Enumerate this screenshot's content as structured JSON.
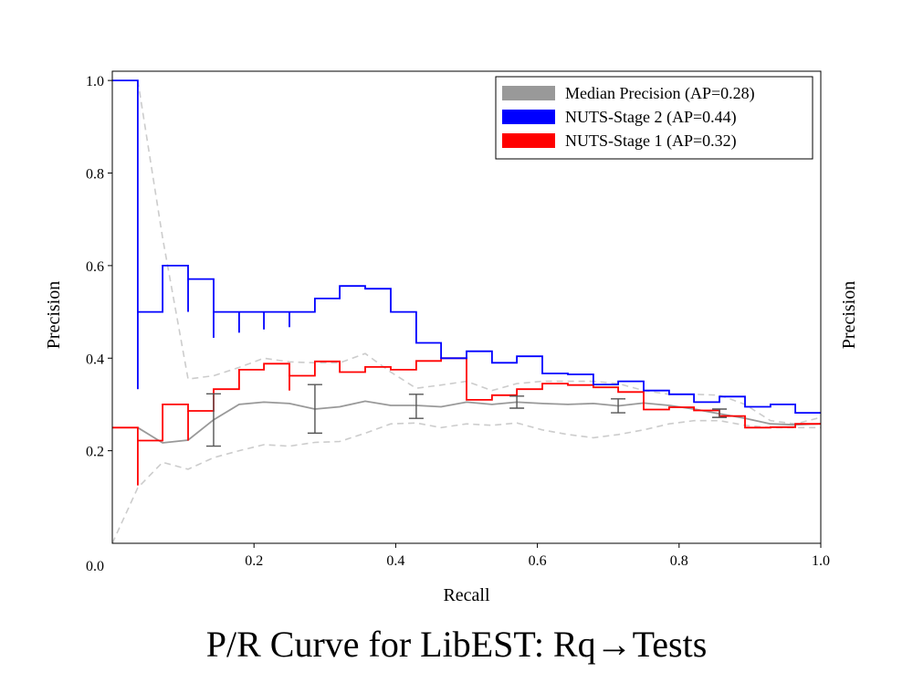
{
  "caption": "P/R Curve for LibEST: Rq→Tests",
  "chart_data": {
    "type": "line",
    "xlabel": "Recall",
    "ylabel": "Precision",
    "ylabel_right": "Precision",
    "xlim": [
      0.0,
      1.0
    ],
    "ylim": [
      0.0,
      1.02
    ],
    "xticks": [
      0.2,
      0.4,
      0.6,
      0.8,
      1.0
    ],
    "xtick_labels": [
      "0.2",
      "0.4",
      "0.6",
      "0.8",
      "1.0"
    ],
    "origin_label": "0.0",
    "yticks": [
      0.2,
      0.4,
      0.6,
      0.8,
      1.0
    ],
    "ytick_labels": [
      "0.2",
      "0.4",
      "0.6",
      "0.8",
      "1.0"
    ],
    "grid": false,
    "legend_position": "top-right",
    "colors": {
      "median": "#999999",
      "stage2": "#0000ff",
      "stage1": "#ff0000",
      "bounds": "#cccccc",
      "errorbar": "#555555"
    },
    "legend": [
      {
        "label": "Median Precision (AP=0.28)",
        "color": "#999999"
      },
      {
        "label": "NUTS-Stage 2 (AP=0.44)",
        "color": "#0000ff"
      },
      {
        "label": "NUTS-Stage 1 (AP=0.32)",
        "color": "#ff0000"
      }
    ],
    "series": [
      {
        "name": "NUTS-Stage 2 (AP=0.44)",
        "style": "step",
        "color": "#0000ff",
        "x": [
          0.0,
          0.036,
          0.036,
          0.071,
          0.071,
          0.107,
          0.107,
          0.143,
          0.143,
          0.179,
          0.179,
          0.214,
          0.214,
          0.25,
          0.25,
          0.286,
          0.286,
          0.321,
          0.321,
          0.357,
          0.357,
          0.393,
          0.393,
          0.429,
          0.429,
          0.464,
          0.464,
          0.5,
          0.5,
          0.536,
          0.536,
          0.571,
          0.571,
          0.607,
          0.607,
          0.643,
          0.643,
          0.679,
          0.679,
          0.714,
          0.714,
          0.75,
          0.75,
          0.786,
          0.786,
          0.821,
          0.821,
          0.857,
          0.857,
          0.893,
          0.893,
          0.929,
          0.929,
          0.964,
          0.964,
          1.0
        ],
        "y": [
          1.0,
          1.0,
          0.5,
          0.5,
          0.6,
          0.6,
          0.571,
          0.571,
          0.5,
          0.5,
          0.5,
          0.5,
          0.5,
          0.5,
          0.5,
          0.5,
          0.529,
          0.529,
          0.556,
          0.556,
          0.55,
          0.55,
          0.5,
          0.5,
          0.433,
          0.433,
          0.4,
          0.4,
          0.415,
          0.415,
          0.39,
          0.39,
          0.404,
          0.404,
          0.367,
          0.367,
          0.365,
          0.365,
          0.343,
          0.343,
          0.35,
          0.35,
          0.33,
          0.33,
          0.322,
          0.322,
          0.305,
          0.305,
          0.317,
          0.317,
          0.295,
          0.295,
          0.3,
          0.3,
          0.282,
          0.282
        ],
        "drops": [
          {
            "x": 0.036,
            "y_top": 0.5,
            "y_bottom": 0.333
          },
          {
            "x": 0.107,
            "y_top": 0.571,
            "y_bottom": 0.5
          },
          {
            "x": 0.143,
            "y_top": 0.5,
            "y_bottom": 0.444
          },
          {
            "x": 0.179,
            "y_top": 0.5,
            "y_bottom": 0.455
          },
          {
            "x": 0.214,
            "y_top": 0.5,
            "y_bottom": 0.462
          },
          {
            "x": 0.25,
            "y_top": 0.5,
            "y_bottom": 0.467
          }
        ]
      },
      {
        "name": "NUTS-Stage 1 (AP=0.32)",
        "style": "step",
        "color": "#ff0000",
        "x": [
          0.0,
          0.036,
          0.036,
          0.071,
          0.071,
          0.107,
          0.107,
          0.143,
          0.143,
          0.179,
          0.179,
          0.214,
          0.214,
          0.25,
          0.25,
          0.286,
          0.286,
          0.321,
          0.321,
          0.357,
          0.357,
          0.393,
          0.393,
          0.429,
          0.429,
          0.464,
          0.464,
          0.5,
          0.5,
          0.536,
          0.536,
          0.571,
          0.571,
          0.607,
          0.607,
          0.643,
          0.643,
          0.679,
          0.679,
          0.714,
          0.714,
          0.75,
          0.75,
          0.786,
          0.786,
          0.821,
          0.821,
          0.857,
          0.857,
          0.893,
          0.893,
          0.929,
          0.929,
          0.964,
          0.964,
          1.0
        ],
        "y": [
          0.25,
          0.25,
          0.222,
          0.222,
          0.3,
          0.3,
          0.286,
          0.286,
          0.333,
          0.333,
          0.375,
          0.375,
          0.388,
          0.388,
          0.362,
          0.362,
          0.393,
          0.393,
          0.37,
          0.37,
          0.381,
          0.381,
          0.375,
          0.375,
          0.394,
          0.394,
          0.4,
          0.4,
          0.31,
          0.31,
          0.32,
          0.32,
          0.333,
          0.333,
          0.345,
          0.345,
          0.342,
          0.342,
          0.337,
          0.337,
          0.327,
          0.327,
          0.289,
          0.289,
          0.294,
          0.294,
          0.287,
          0.287,
          0.275,
          0.275,
          0.25,
          0.25,
          0.251,
          0.251,
          0.258,
          0.258
        ],
        "drops": [
          {
            "x": 0.036,
            "y_top": 0.222,
            "y_bottom": 0.125
          },
          {
            "x": 0.107,
            "y_top": 0.286,
            "y_bottom": 0.222
          },
          {
            "x": 0.25,
            "y_top": 0.388,
            "y_bottom": 0.33
          }
        ]
      },
      {
        "name": "Median Precision (AP=0.28)",
        "style": "line",
        "color": "#999999",
        "x": [
          0.036,
          0.071,
          0.107,
          0.143,
          0.179,
          0.214,
          0.25,
          0.286,
          0.321,
          0.357,
          0.393,
          0.429,
          0.464,
          0.5,
          0.536,
          0.571,
          0.607,
          0.643,
          0.679,
          0.714,
          0.75,
          0.786,
          0.821,
          0.857,
          0.893,
          0.929,
          0.964,
          1.0
        ],
        "y": [
          0.25,
          0.217,
          0.223,
          0.267,
          0.3,
          0.305,
          0.302,
          0.29,
          0.295,
          0.307,
          0.298,
          0.298,
          0.295,
          0.305,
          0.3,
          0.305,
          0.302,
          0.3,
          0.302,
          0.297,
          0.303,
          0.298,
          0.29,
          0.28,
          0.27,
          0.258,
          0.256,
          0.258
        ]
      },
      {
        "name": "upper bound",
        "style": "dashed",
        "color": "#cccccc",
        "x": [
          0.036,
          0.071,
          0.107,
          0.143,
          0.179,
          0.214,
          0.25,
          0.286,
          0.321,
          0.357,
          0.393,
          0.429,
          0.464,
          0.5,
          0.536,
          0.571,
          0.607,
          0.643,
          0.679,
          0.714,
          0.75,
          0.786,
          0.821,
          0.857,
          0.893,
          0.929,
          0.964,
          1.0
        ],
        "y": [
          1.0,
          0.66,
          0.355,
          0.362,
          0.38,
          0.4,
          0.392,
          0.39,
          0.39,
          0.41,
          0.37,
          0.335,
          0.342,
          0.35,
          0.33,
          0.345,
          0.35,
          0.35,
          0.35,
          0.345,
          0.33,
          0.322,
          0.322,
          0.32,
          0.3,
          0.265,
          0.258,
          0.272
        ]
      },
      {
        "name": "lower bound",
        "style": "dashed",
        "color": "#cccccc",
        "x": [
          0.0,
          0.036,
          0.071,
          0.107,
          0.143,
          0.179,
          0.214,
          0.25,
          0.286,
          0.321,
          0.357,
          0.393,
          0.429,
          0.464,
          0.5,
          0.536,
          0.571,
          0.607,
          0.643,
          0.679,
          0.714,
          0.75,
          0.786,
          0.821,
          0.857,
          0.893,
          0.929,
          0.964,
          1.0
        ],
        "y": [
          0.0,
          0.12,
          0.175,
          0.16,
          0.185,
          0.2,
          0.213,
          0.21,
          0.218,
          0.22,
          0.238,
          0.258,
          0.26,
          0.25,
          0.258,
          0.255,
          0.26,
          0.245,
          0.235,
          0.228,
          0.235,
          0.245,
          0.258,
          0.265,
          0.265,
          0.255,
          0.25,
          0.25,
          0.25
        ]
      }
    ],
    "error_bars": [
      {
        "x": 0.143,
        "low": 0.21,
        "high": 0.323
      },
      {
        "x": 0.286,
        "low": 0.238,
        "high": 0.343
      },
      {
        "x": 0.429,
        "low": 0.27,
        "high": 0.322
      },
      {
        "x": 0.571,
        "low": 0.292,
        "high": 0.318
      },
      {
        "x": 0.714,
        "low": 0.282,
        "high": 0.312
      },
      {
        "x": 0.857,
        "low": 0.272,
        "high": 0.29
      }
    ]
  }
}
